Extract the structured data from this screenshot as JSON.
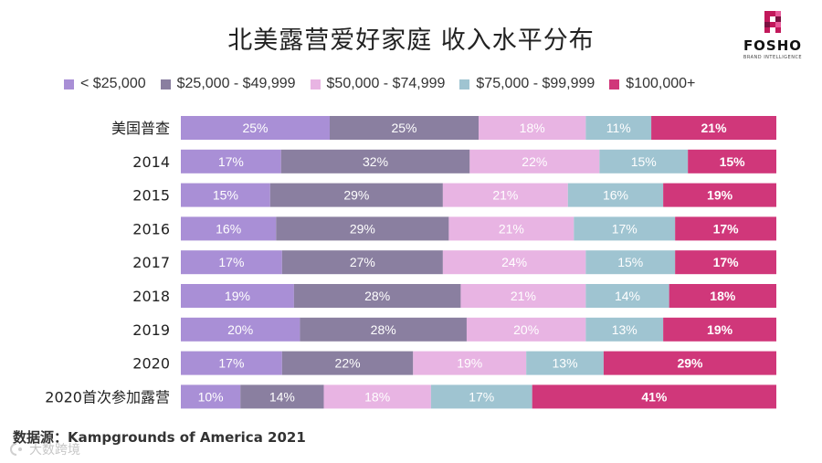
{
  "chart_data": {
    "type": "bar",
    "orientation": "horizontal",
    "stacked": "100%",
    "title": "北美露营爱好家庭 收入水平分布",
    "categories": [
      "美国普查",
      "2014",
      "2015",
      "2016",
      "2017",
      "2018",
      "2019",
      "2020",
      "2020首次参加露营"
    ],
    "series": [
      {
        "name": "< $25,000",
        "color": "#a98fd6",
        "labels": [
          "25%",
          "17%",
          "15%",
          "16%",
          "17%",
          "19%",
          "20%",
          "17%",
          "10%"
        ],
        "values": [
          25,
          17,
          15,
          16,
          17,
          19,
          20,
          17,
          10
        ]
      },
      {
        "name": "$25,000 - $49,999",
        "color": "#8a7fa0",
        "labels": [
          "25%",
          "32%",
          "29%",
          "29%",
          "27%",
          "28%",
          "28%",
          "22%",
          "14%"
        ],
        "values": [
          25,
          32,
          29,
          29,
          27,
          28,
          28,
          22,
          14
        ]
      },
      {
        "name": "$50,000 - $74,999",
        "color": "#e8b4e3",
        "labels": [
          "18%",
          "22%",
          "21%",
          "21%",
          "24%",
          "21%",
          "20%",
          "19%",
          "18%"
        ],
        "values": [
          18,
          22,
          21,
          21,
          24,
          21,
          20,
          19,
          18
        ]
      },
      {
        "name": "$75,000 - $99,999",
        "color": "#9fc4d1",
        "labels": [
          "11%",
          "15%",
          "16%",
          "17%",
          "15%",
          "14%",
          "13%",
          "13%",
          "17%"
        ],
        "values": [
          11,
          15,
          16,
          17,
          15,
          14,
          13,
          13,
          17
        ]
      },
      {
        "name": "$100,000+",
        "color": "#d0377a",
        "labels": [
          "21%",
          "15%",
          "19%",
          "17%",
          "17%",
          "18%",
          "19%",
          "29%",
          "41%"
        ],
        "values": [
          21,
          15,
          19,
          17,
          17,
          18,
          19,
          29,
          41
        ]
      }
    ],
    "xlim": [
      0,
      100
    ],
    "legend": "top"
  },
  "source": "数据源：Kampgrounds of America 2021",
  "logo": {
    "text": "FOSHO",
    "subtitle": "BRAND INTELLIGENCE",
    "color": "#c2185b"
  },
  "watermark": "大数跨境"
}
